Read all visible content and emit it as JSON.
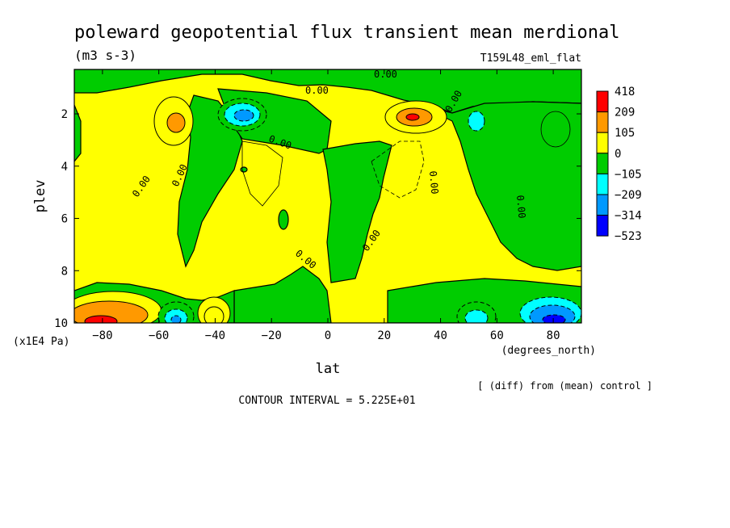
{
  "chart_data": {
    "type": "heatmap",
    "title": "poleward geopotential flux transient mean merdional",
    "units": "(m3 s-3)",
    "run_label": "T159L48_eml_flat",
    "xlabel": "lat",
    "xunits": "(degrees_north)",
    "ylabel": "plev",
    "yunits": "(x1E4 Pa)",
    "xlim": [
      -90,
      90
    ],
    "ylim": [
      10,
      0.3
    ],
    "x_ticks": [
      "-80",
      "-60",
      "-40",
      "-20",
      "0",
      "20",
      "40",
      "60",
      "80"
    ],
    "x_tick_values": [
      -80,
      -60,
      -40,
      -20,
      0,
      20,
      40,
      60,
      80
    ],
    "y_ticks": [
      "2",
      "4",
      "6",
      "8",
      "10"
    ],
    "y_tick_values": [
      2,
      4,
      6,
      8,
      10
    ],
    "grid": false,
    "legend_position": "right",
    "contour_label": "0.00",
    "colorbar": {
      "labels": [
        "418",
        "209",
        "105",
        "0",
        "−105",
        "−209",
        "−314",
        "−523"
      ],
      "colors": [
        "#ff0000",
        "#ff9900",
        "#ffff00",
        "#00cc00",
        "#00ffff",
        "#0099ff",
        "#0000ff"
      ]
    },
    "footer_note": "[ (diff) from (mean) control ]",
    "contour_interval": "CONTOUR INTERVAL = 5.225E+01",
    "features": [
      {
        "lat": -82,
        "plev": 9.7,
        "value": 209
      },
      {
        "lat": -70,
        "plev": 9.6,
        "value": 105
      },
      {
        "lat": -55,
        "plev": 9.7,
        "value": -209
      },
      {
        "lat": -42,
        "plev": 9.8,
        "value": 105
      },
      {
        "lat": -53,
        "plev": 2.2,
        "value": 209
      },
      {
        "lat": -30,
        "plev": 2.0,
        "value": -209
      },
      {
        "lat": 30,
        "plev": 2.0,
        "value": 209
      },
      {
        "lat": 53,
        "plev": 2.2,
        "value": -105
      },
      {
        "lat": 52,
        "plev": 9.7,
        "value": -105
      },
      {
        "lat": 80,
        "plev": 9.8,
        "value": -314
      }
    ]
  }
}
